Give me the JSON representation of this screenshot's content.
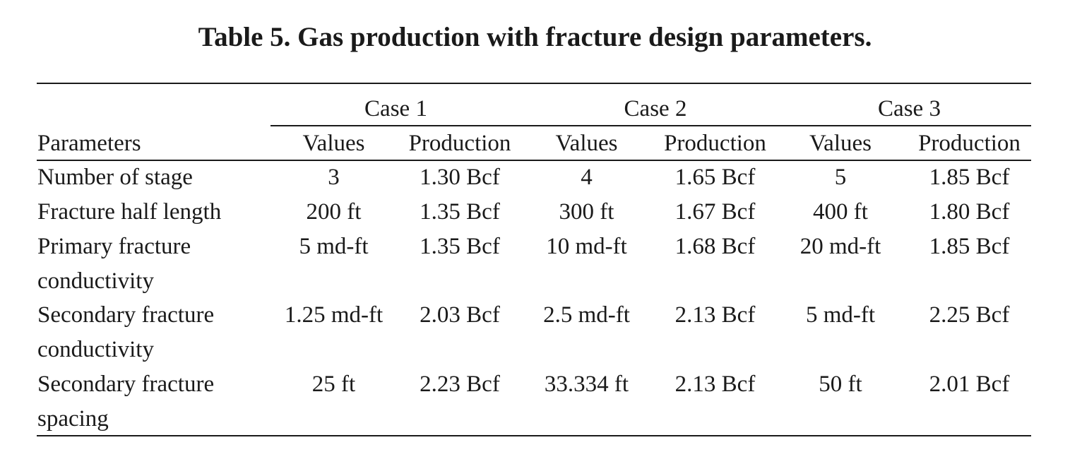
{
  "title": "Table 5. Gas production with fracture design parameters.",
  "table": {
    "case_headers": [
      "Case 1",
      "Case 2",
      "Case 3"
    ],
    "row_header": "Parameters",
    "sub_headers": [
      "Values",
      "Production",
      "Values",
      "Production",
      "Values",
      "Production"
    ],
    "rows": [
      {
        "param_lines": [
          "Number of stage"
        ],
        "cells": [
          "3",
          "1.30 Bcf",
          "4",
          "1.65 Bcf",
          "5",
          "1.85 Bcf"
        ]
      },
      {
        "param_lines": [
          "Fracture half length"
        ],
        "cells": [
          "200 ft",
          "1.35 Bcf",
          "300 ft",
          "1.67 Bcf",
          "400 ft",
          "1.80 Bcf"
        ]
      },
      {
        "param_lines": [
          "Primary fracture",
          "conductivity"
        ],
        "cells": [
          "5 md-ft",
          "1.35 Bcf",
          "10 md-ft",
          "1.68 Bcf",
          "20 md-ft",
          "1.85 Bcf"
        ]
      },
      {
        "param_lines": [
          "Secondary fracture",
          "conductivity"
        ],
        "cells": [
          "1.25 md-ft",
          "2.03 Bcf",
          "2.5 md-ft",
          "2.13 Bcf",
          "5 md-ft",
          "2.25 Bcf"
        ]
      },
      {
        "param_lines": [
          "Secondary fracture",
          "spacing"
        ],
        "cells": [
          "25 ft",
          "2.23 Bcf",
          "33.334 ft",
          "2.13 Bcf",
          "50 ft",
          "2.01 Bcf"
        ]
      }
    ]
  }
}
